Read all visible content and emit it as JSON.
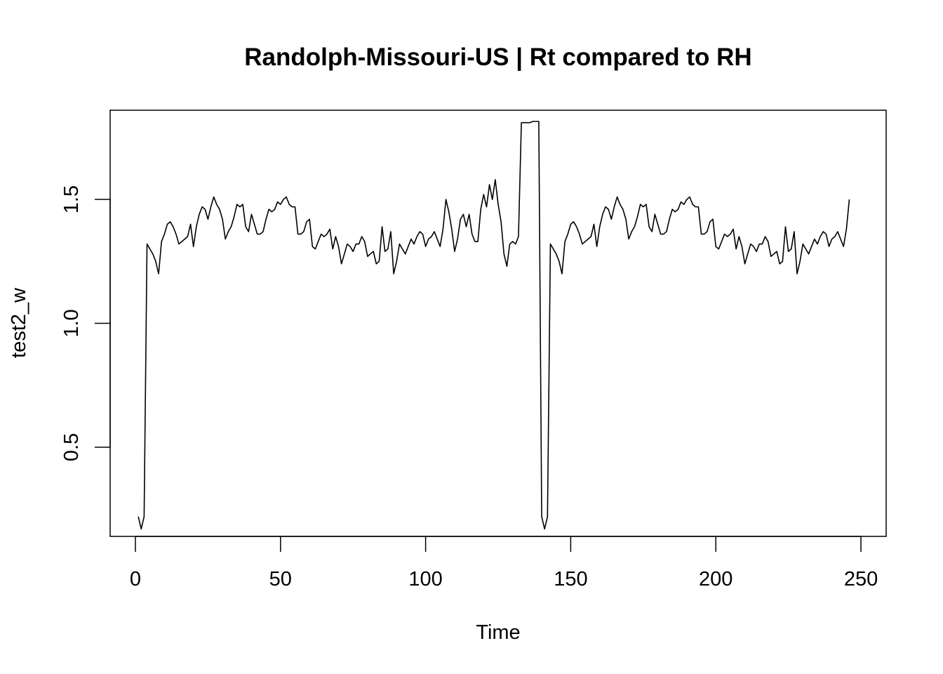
{
  "chart_data": {
    "type": "line",
    "title": "Randolph-Missouri-US | Rt compared to RH",
    "xlabel": "Time",
    "ylabel": "test2_w",
    "xlim": [
      -8.7,
      258.7
    ],
    "ylim": [
      0.14,
      1.86
    ],
    "x_ticks": [
      0,
      50,
      100,
      150,
      200,
      250
    ],
    "y_ticks": [
      0.5,
      1.0,
      1.5
    ],
    "x_tick_labels": [
      "0",
      "50",
      "100",
      "150",
      "200",
      "250"
    ],
    "y_tick_labels": [
      "0.5",
      "1.0",
      "1.5"
    ],
    "line_color": "#000000",
    "grid": false,
    "series": [
      {
        "x_start": 1,
        "values": [
          0.22,
          0.17,
          0.22,
          1.32,
          1.3,
          1.28,
          1.25,
          1.2,
          1.33,
          1.36,
          1.4,
          1.41,
          1.39,
          1.36,
          1.32,
          1.33,
          1.34,
          1.35,
          1.4,
          1.31,
          1.39,
          1.44,
          1.47,
          1.46,
          1.42,
          1.47,
          1.51,
          1.48,
          1.46,
          1.42,
          1.34,
          1.37,
          1.39,
          1.43,
          1.48,
          1.47,
          1.48,
          1.39,
          1.37,
          1.44,
          1.4,
          1.36,
          1.36,
          1.37,
          1.42,
          1.46,
          1.45,
          1.46,
          1.49,
          1.48,
          1.5,
          1.51,
          1.48,
          1.47,
          1.47,
          1.36,
          1.36,
          1.37,
          1.41,
          1.42,
          1.31,
          1.3,
          1.33,
          1.36,
          1.35,
          1.36,
          1.38,
          1.3,
          1.35,
          1.31,
          1.24,
          1.28,
          1.32,
          1.31,
          1.29,
          1.32,
          1.32,
          1.35,
          1.33,
          1.27,
          1.28,
          1.29,
          1.24,
          1.25,
          1.39,
          1.29,
          1.3,
          1.37,
          1.2,
          1.25,
          1.32,
          1.3,
          1.28,
          1.31,
          1.34,
          1.32,
          1.35,
          1.37,
          1.36,
          1.31,
          1.34,
          1.35,
          1.37,
          1.34,
          1.31,
          1.38,
          1.5,
          1.45,
          1.38,
          1.29,
          1.34,
          1.42,
          1.44,
          1.39,
          1.44,
          1.36,
          1.33,
          1.33,
          1.46,
          1.52,
          1.47,
          1.56,
          1.5,
          1.58,
          1.48,
          1.41,
          1.28,
          1.23,
          1.32,
          1.33,
          1.32,
          1.35,
          1.81,
          1.81,
          1.81,
          1.81,
          1.815,
          1.815,
          1.815,
          0.22,
          0.17,
          0.22,
          1.32,
          1.3,
          1.28,
          1.25,
          1.2,
          1.33,
          1.36,
          1.4,
          1.41,
          1.39,
          1.36,
          1.32,
          1.33,
          1.34,
          1.35,
          1.4,
          1.31,
          1.39,
          1.44,
          1.47,
          1.46,
          1.42,
          1.47,
          1.51,
          1.48,
          1.46,
          1.42,
          1.34,
          1.37,
          1.39,
          1.43,
          1.48,
          1.47,
          1.48,
          1.39,
          1.37,
          1.44,
          1.4,
          1.36,
          1.36,
          1.37,
          1.42,
          1.46,
          1.45,
          1.46,
          1.49,
          1.48,
          1.5,
          1.51,
          1.48,
          1.47,
          1.47,
          1.36,
          1.36,
          1.37,
          1.41,
          1.42,
          1.31,
          1.3,
          1.33,
          1.36,
          1.35,
          1.36,
          1.38,
          1.3,
          1.35,
          1.31,
          1.24,
          1.28,
          1.32,
          1.31,
          1.29,
          1.32,
          1.32,
          1.35,
          1.33,
          1.27,
          1.28,
          1.29,
          1.24,
          1.25,
          1.39,
          1.29,
          1.3,
          1.37,
          1.2,
          1.25,
          1.32,
          1.3,
          1.28,
          1.31,
          1.34,
          1.32,
          1.35,
          1.37,
          1.36,
          1.31,
          1.34,
          1.35,
          1.37,
          1.34,
          1.31,
          1.38,
          1.5
        ]
      }
    ]
  }
}
